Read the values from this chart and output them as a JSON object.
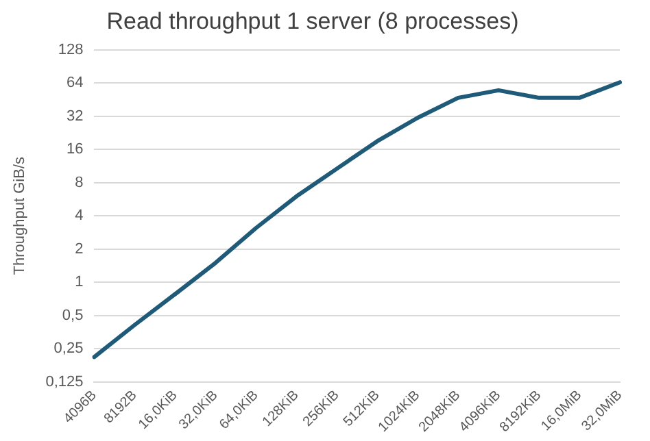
{
  "chart_data": {
    "type": "line",
    "title": "Read throughput 1 server (8 processes)",
    "ylabel": "Throughput GiB/s",
    "categories": [
      "4096B",
      "8192B",
      "16,0KiB",
      "32,0KiB",
      "64,0KiB",
      "128KiB",
      "256KiB",
      "512KiB",
      "1024KiB",
      "2048KiB",
      "4096KiB",
      "8192KiB",
      "16,0MiB",
      "32,0MiB"
    ],
    "series": [
      {
        "color": "#1f5a78",
        "values": [
          0.21,
          0.41,
          0.78,
          1.5,
          3.1,
          6,
          10.7,
          19,
          31,
          47,
          55,
          47,
          47,
          65
        ]
      }
    ],
    "log": "y",
    "ylim": [
      0.125,
      128
    ],
    "yticks": [
      {
        "value": 0.125,
        "label": "0,125"
      },
      {
        "value": 0.25,
        "label": "0,25"
      },
      {
        "value": 0.5,
        "label": "0,5"
      },
      1,
      2,
      4,
      8,
      16,
      32,
      64,
      128
    ],
    "grid": "y",
    "legend": false,
    "marker": "none",
    "line_style": "solid"
  }
}
